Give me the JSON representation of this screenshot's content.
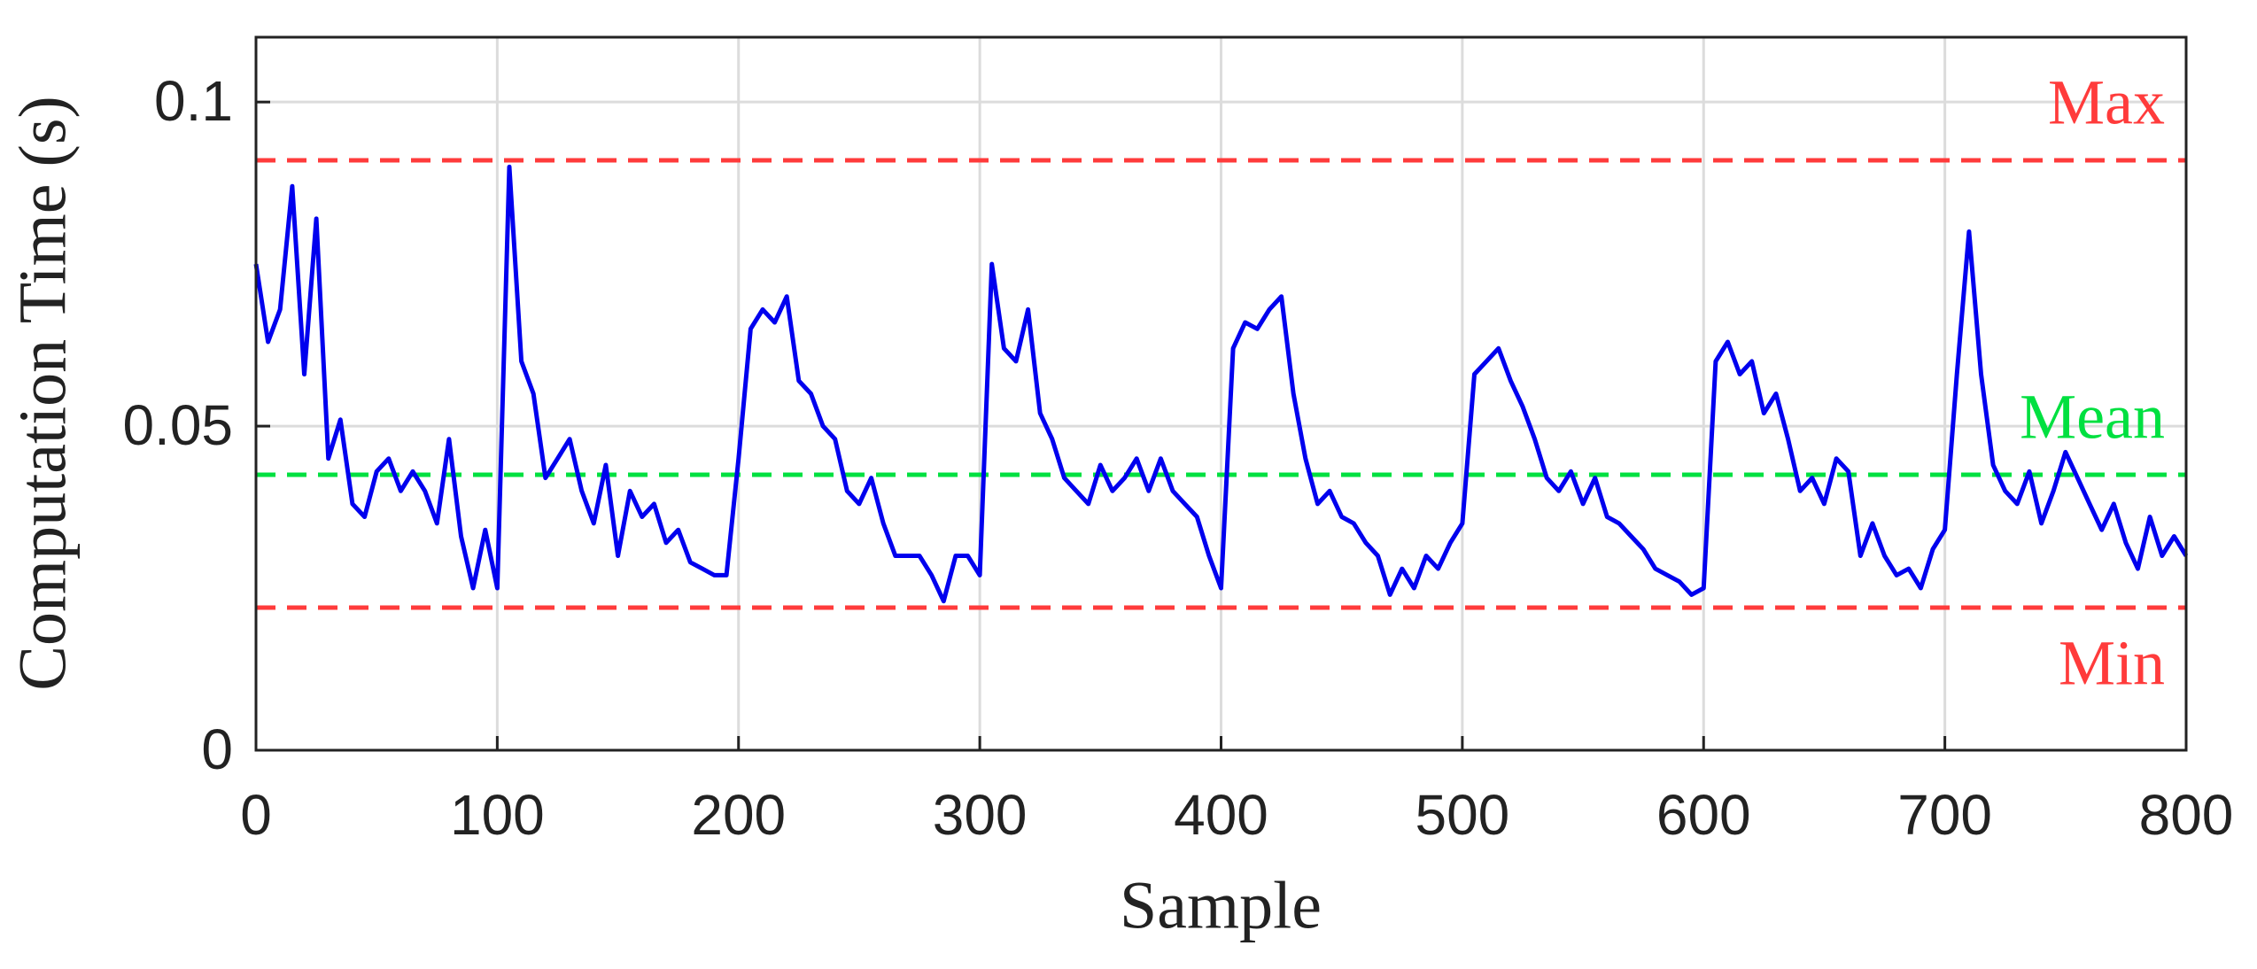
{
  "chart_data": {
    "type": "line",
    "xlabel": "Sample",
    "ylabel": "Computation Time (s)",
    "x": [
      0,
      5,
      10,
      15,
      20,
      25,
      30,
      35,
      40,
      45,
      50,
      55,
      60,
      65,
      70,
      75,
      80,
      85,
      90,
      95,
      100,
      105,
      110,
      115,
      120,
      125,
      130,
      135,
      140,
      145,
      150,
      155,
      160,
      165,
      170,
      175,
      180,
      185,
      190,
      195,
      200,
      205,
      210,
      215,
      220,
      225,
      230,
      235,
      240,
      245,
      250,
      255,
      260,
      265,
      270,
      275,
      280,
      285,
      290,
      295,
      300,
      305,
      310,
      315,
      320,
      325,
      330,
      335,
      340,
      345,
      350,
      355,
      360,
      365,
      370,
      375,
      380,
      385,
      390,
      395,
      400,
      405,
      410,
      415,
      420,
      425,
      430,
      435,
      440,
      445,
      450,
      455,
      460,
      465,
      470,
      475,
      480,
      485,
      490,
      495,
      500,
      505,
      510,
      515,
      520,
      525,
      530,
      535,
      540,
      545,
      550,
      555,
      560,
      565,
      570,
      575,
      580,
      585,
      590,
      595,
      600,
      605,
      610,
      615,
      620,
      625,
      630,
      635,
      640,
      645,
      650,
      655,
      660,
      665,
      670,
      675,
      680,
      685,
      690,
      695,
      700,
      705,
      710,
      715,
      720,
      725,
      730,
      735,
      740,
      745,
      750,
      755,
      760,
      765,
      770,
      775,
      780,
      785,
      790,
      795,
      800
    ],
    "series": [
      {
        "color": "#0000ee",
        "values": [
          0.075,
          0.063,
          0.068,
          0.087,
          0.058,
          0.082,
          0.045,
          0.051,
          0.038,
          0.036,
          0.043,
          0.045,
          0.04,
          0.043,
          0.04,
          0.035,
          0.048,
          0.033,
          0.025,
          0.034,
          0.025,
          0.09,
          0.06,
          0.055,
          0.042,
          0.045,
          0.048,
          0.04,
          0.035,
          0.044,
          0.03,
          0.04,
          0.036,
          0.038,
          0.032,
          0.034,
          0.029,
          0.028,
          0.027,
          0.027,
          0.045,
          0.065,
          0.068,
          0.066,
          0.07,
          0.057,
          0.055,
          0.05,
          0.048,
          0.04,
          0.038,
          0.042,
          0.035,
          0.03,
          0.03,
          0.03,
          0.027,
          0.023,
          0.03,
          0.03,
          0.027,
          0.075,
          0.062,
          0.06,
          0.068,
          0.052,
          0.048,
          0.042,
          0.04,
          0.038,
          0.044,
          0.04,
          0.042,
          0.045,
          0.04,
          0.045,
          0.04,
          0.038,
          0.036,
          0.03,
          0.025,
          0.062,
          0.066,
          0.065,
          0.068,
          0.07,
          0.055,
          0.045,
          0.038,
          0.04,
          0.036,
          0.035,
          0.032,
          0.03,
          0.024,
          0.028,
          0.025,
          0.03,
          0.028,
          0.032,
          0.035,
          0.058,
          0.06,
          0.062,
          0.057,
          0.053,
          0.048,
          0.042,
          0.04,
          0.043,
          0.038,
          0.042,
          0.036,
          0.035,
          0.033,
          0.031,
          0.028,
          0.027,
          0.026,
          0.024,
          0.025,
          0.06,
          0.063,
          0.058,
          0.06,
          0.052,
          0.055,
          0.048,
          0.04,
          0.042,
          0.038,
          0.045,
          0.043,
          0.03,
          0.035,
          0.03,
          0.027,
          0.028,
          0.025,
          0.031,
          0.034,
          0.058,
          0.08,
          0.058,
          0.044,
          0.04,
          0.038,
          0.043,
          0.035,
          0.04,
          0.046,
          0.042,
          0.038,
          0.034,
          0.038,
          0.032,
          0.028,
          0.036,
          0.03,
          0.033,
          0.03
        ]
      }
    ],
    "reference_lines": [
      {
        "name": "Max",
        "value": 0.091,
        "color": "#ff3b3b",
        "label_position": "above"
      },
      {
        "name": "Mean",
        "value": 0.0425,
        "color": "#00e040",
        "label_position": "above"
      },
      {
        "name": "Min",
        "value": 0.022,
        "color": "#ff3b3b",
        "label_position": "below"
      }
    ],
    "xlim": [
      0,
      800
    ],
    "xticks": [
      0,
      100,
      200,
      300,
      400,
      500,
      600,
      700,
      800
    ],
    "ylim": [
      0,
      0.11
    ],
    "yticks": [
      0,
      0.05,
      0.1
    ],
    "grid": true
  }
}
